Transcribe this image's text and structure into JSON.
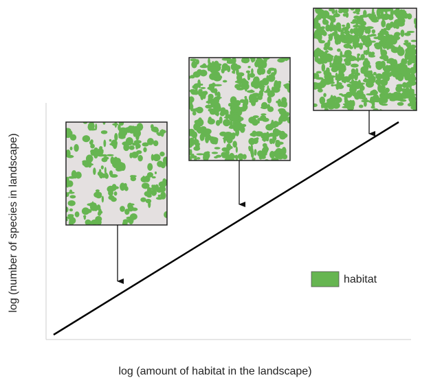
{
  "axes": {
    "y_label": "log (number of species in landscape)",
    "x_label": "log (amount of habitat in the landscape)"
  },
  "legend": {
    "label": "habitat"
  }
}
